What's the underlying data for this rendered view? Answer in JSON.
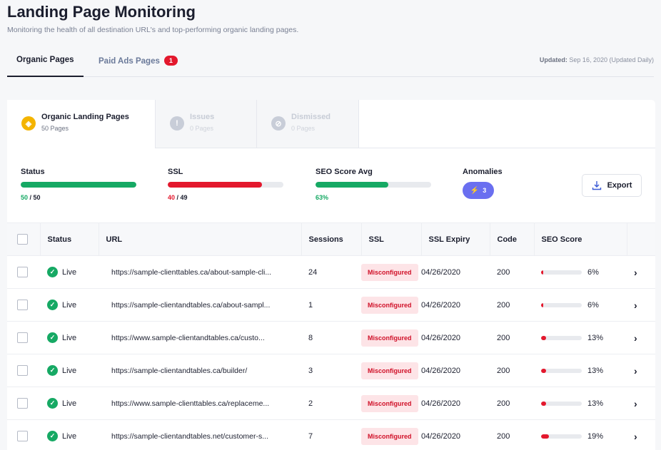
{
  "header": {
    "title": "Landing Page Monitoring",
    "subtitle": "Monitoring the health of all destination URL's and top-performing organic landing pages."
  },
  "top_tabs": {
    "organic_label": "Organic Pages",
    "paid_label": "Paid Ads Pages",
    "paid_badge": "1",
    "updated_prefix": "Updated:",
    "updated_value": "Sep 16, 2020 (Updated Daily)"
  },
  "sub_tabs": [
    {
      "title": "Organic Landing Pages",
      "count": "50 Pages"
    },
    {
      "title": "Issues",
      "count": "0 Pages"
    },
    {
      "title": "Dismissed",
      "count": "0 Pages"
    }
  ],
  "metrics": {
    "status": {
      "label": "Status",
      "current": "50",
      "sep": " / ",
      "total": "50",
      "fraction": 1.0,
      "color": "#16a964"
    },
    "ssl": {
      "label": "SSL",
      "current": "40",
      "sep": " / ",
      "total": "49",
      "fraction": 0.816,
      "color": "#e3182d"
    },
    "seo": {
      "label": "SEO Score Avg",
      "value": "63%",
      "fraction": 0.63,
      "color": "#16a964"
    },
    "anomalies": {
      "label": "Anomalies",
      "count": "3",
      "icon": "lightning-icon"
    }
  },
  "export_label": "Export",
  "table": {
    "columns": [
      "Status",
      "URL",
      "Sessions",
      "SSL",
      "SSL Expiry",
      "Code",
      "SEO Score"
    ],
    "rows": [
      {
        "status": "Live",
        "url": "https://sample-clienttables.ca/about-sample-cli...",
        "sessions": "24",
        "ssl": "Misconfigured",
        "expiry": "04/26/2020",
        "code": "200",
        "seo": "6%",
        "seo_fraction": 0.06
      },
      {
        "status": "Live",
        "url": "https://sample-clientandtables.ca/about-sampl...",
        "sessions": "1",
        "ssl": "Misconfigured",
        "expiry": "04/26/2020",
        "code": "200",
        "seo": "6%",
        "seo_fraction": 0.06
      },
      {
        "status": "Live",
        "url": "https://www.sample-clientandtables.ca/custo...",
        "sessions": "8",
        "ssl": "Misconfigured",
        "expiry": "04/26/2020",
        "code": "200",
        "seo": "13%",
        "seo_fraction": 0.13
      },
      {
        "status": "Live",
        "url": "https://sample-clientandtables.ca/builder/",
        "sessions": "3",
        "ssl": "Misconfigured",
        "expiry": "04/26/2020",
        "code": "200",
        "seo": "13%",
        "seo_fraction": 0.13
      },
      {
        "status": "Live",
        "url": "https://www.sample-clienttables.ca/replaceme...",
        "sessions": "2",
        "ssl": "Misconfigured",
        "expiry": "04/26/2020",
        "code": "200",
        "seo": "13%",
        "seo_fraction": 0.13
      },
      {
        "status": "Live",
        "url": "https://sample-clientandtables.net/customer-s...",
        "sessions": "7",
        "ssl": "Misconfigured",
        "expiry": "04/26/2020",
        "code": "200",
        "seo": "19%",
        "seo_fraction": 0.19
      }
    ]
  }
}
